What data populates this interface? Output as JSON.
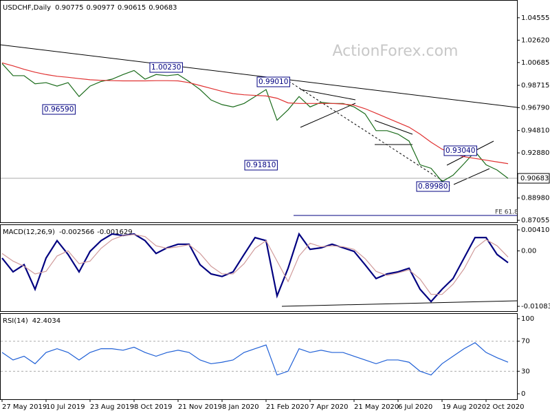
{
  "chart_data": [
    {
      "type": "line",
      "title": "USDCHF,Daily",
      "ohlc": [
        0.90775,
        0.90977,
        0.90615,
        0.90683
      ],
      "watermark": "ActionForex.com",
      "ylim": [
        0.8688,
        1.0603
      ],
      "yticks": [
        1.04555,
        {
          "value": 1.0262,
          "label": "1.02620"
        },
        {
          "value": 1.00685,
          "label": "1.00685"
        },
        0.98715,
        {
          "value": 0.9679,
          "label": "0.96790"
        },
        {
          "value": 0.9481,
          "label": "0.94810"
        },
        {
          "value": 0.9288,
          "label": "0.92880"
        },
        {
          "value": 0.8898,
          "label": "0.88980"
        },
        0.87055
      ],
      "last_price": 0.90683,
      "series": [
        {
          "color": "#1a6b1a",
          "values": [
            1.006,
            0.9955,
            0.9955,
            0.9885,
            0.9895,
            0.9865,
            0.9895,
            0.9775,
            0.9865,
            0.9905,
            0.9925,
            0.9965,
            1.0,
            0.9925,
            0.9965,
            0.9955,
            0.9965,
            0.9905,
            0.9835,
            0.9745,
            0.9705,
            0.9685,
            0.9715,
            0.9775,
            0.9835,
            0.957,
            0.966,
            0.9775,
            0.9685,
            0.9725,
            0.9715,
            0.9715,
            0.9685,
            0.9625,
            0.948,
            0.948,
            0.945,
            0.939,
            0.9185,
            0.9155,
            0.904,
            0.9095,
            0.9195,
            0.93,
            0.9185,
            0.914,
            0.9068
          ]
        },
        {
          "color": "#e03030",
          "values": [
            1.0066,
            1.004,
            1.001,
            0.9985,
            0.9965,
            0.995,
            0.9941,
            0.993,
            0.992,
            0.9915,
            0.9912,
            0.991,
            0.991,
            0.991,
            0.9912,
            0.9912,
            0.991,
            0.9895,
            0.987,
            0.9845,
            0.982,
            0.98,
            0.979,
            0.9785,
            0.978,
            0.976,
            0.972,
            0.9715,
            0.9715,
            0.9715,
            0.9715,
            0.971,
            0.97,
            0.967,
            0.963,
            0.959,
            0.955,
            0.951,
            0.945,
            0.938,
            0.932,
            0.928,
            0.9255,
            0.924,
            0.9225,
            0.921,
            0.9195
          ]
        }
      ],
      "annotations": [
        "1.00230",
        "0.99010",
        "0.96590",
        "0.91810",
        "0.93040",
        "0.89980",
        "FE 61.8"
      ]
    },
    {
      "type": "line",
      "title": "MACD(12,26,9)",
      "readings": [
        -0.002566,
        -0.001629
      ],
      "ylim": [
        -0.01177,
        0.00504
      ],
      "yticks": [
        0.004101,
        {
          "value": 0,
          "label": "0.00"
        },
        -0.010833
      ],
      "series": [
        {
          "color": "#000080",
          "values": [
            -0.0014,
            -0.0041,
            -0.0027,
            -0.0075,
            -0.0014,
            0.002,
            -0.0007,
            -0.0041,
            -0.0001,
            0.002,
            0.0033,
            0.003,
            0.0033,
            0.002,
            -0.0005,
            0.0006,
            0.0013,
            0.0013,
            -0.0027,
            -0.0045,
            -0.005,
            -0.0041,
            -0.0007,
            0.0026,
            0.002,
            -0.0088,
            -0.0034,
            0.0033,
            0.0003,
            0.0006,
            0.0013,
            0.0006,
            -0.0001,
            -0.0027,
            -0.0054,
            -0.0045,
            -0.0041,
            -0.0034,
            -0.0075,
            -0.0099,
            -0.0075,
            -0.0054,
            -0.0014,
            0.0026,
            0.0026,
            -0.0007,
            -0.0023
          ]
        },
        {
          "color": "#d09a9a",
          "values": [
            -0.0005,
            -0.002,
            -0.003,
            -0.0045,
            -0.004,
            -0.001,
            0.0,
            -0.0025,
            -0.002,
            0.0005,
            0.0022,
            0.003,
            0.0032,
            0.0028,
            0.001,
            0.0005,
            0.0008,
            0.0012,
            -0.0005,
            -0.003,
            -0.0045,
            -0.0045,
            -0.0025,
            0.0005,
            0.002,
            -0.002,
            -0.006,
            -0.001,
            0.0015,
            0.0008,
            0.001,
            0.0008,
            0.0003,
            -0.0015,
            -0.004,
            -0.0048,
            -0.0043,
            -0.0037,
            -0.0055,
            -0.0085,
            -0.0085,
            -0.0065,
            -0.0035,
            0.0005,
            0.0022,
            0.001,
            -0.0012
          ]
        }
      ]
    },
    {
      "type": "line",
      "title": "RSI(14)",
      "readings": [
        42.4034
      ],
      "ylim": [
        -7.3,
        106.4
      ],
      "yticks": [
        100,
        70,
        30,
        0
      ],
      "grid_ticks": [
        70,
        30
      ],
      "categories": [
        "27 May 2019",
        null,
        null,
        null,
        "10 Jul 2019",
        null,
        null,
        null,
        "23 Aug 2019",
        null,
        null,
        null,
        "8 Oct 2019",
        null,
        null,
        null,
        "21 Nov 2019",
        null,
        null,
        null,
        "8 Jan 2020",
        null,
        null,
        null,
        "21 Feb 2020",
        null,
        null,
        null,
        "7 Apr 2020",
        null,
        null,
        null,
        "21 May 2020",
        null,
        null,
        null,
        "6 Jul 2020",
        null,
        null,
        null,
        "19 Aug 2020",
        null,
        null,
        null,
        "2 Oct 2020",
        null,
        null
      ],
      "series": [
        {
          "color": "#1e5fd6",
          "values": [
            55,
            45,
            50,
            40,
            55,
            60,
            55,
            45,
            55,
            60,
            60,
            58,
            62,
            55,
            50,
            55,
            58,
            55,
            45,
            40,
            42,
            45,
            55,
            60,
            65,
            25,
            30,
            60,
            55,
            58,
            55,
            55,
            50,
            45,
            40,
            45,
            45,
            42,
            30,
            25,
            40,
            50,
            60,
            68,
            55,
            48,
            42
          ]
        }
      ]
    }
  ]
}
